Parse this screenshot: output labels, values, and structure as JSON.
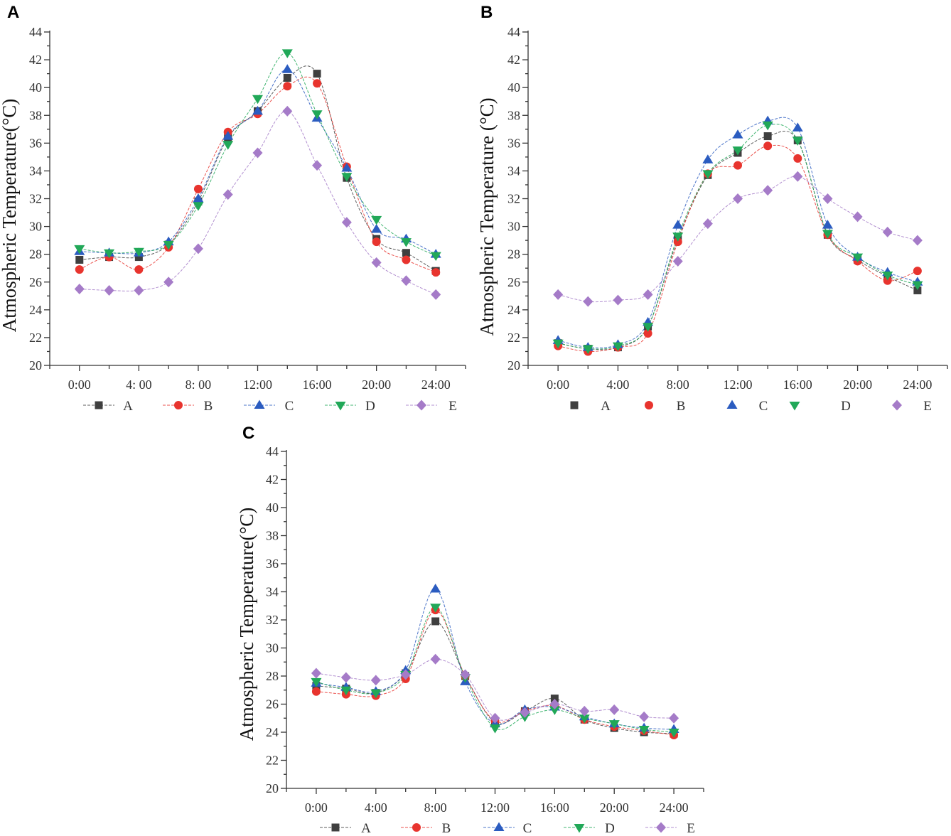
{
  "chart_data": [
    {
      "panel_label": "A",
      "type": "line",
      "title": "",
      "xlabel": "",
      "ylabel": "Atmospheric Temperature(°C)",
      "x": [
        0,
        2,
        4,
        6,
        8,
        10,
        12,
        14,
        16,
        18,
        20,
        22,
        24
      ],
      "x_ticks": [
        0,
        4,
        8,
        12,
        16,
        20,
        24
      ],
      "x_tick_labels": [
        "0:00",
        "4: 00",
        "8: 00",
        "12:00",
        "16:00",
        "20:00",
        "24:00"
      ],
      "xlim": [
        -2,
        26
      ],
      "ylim": [
        20,
        44
      ],
      "y_ticks": [
        20,
        22,
        24,
        26,
        28,
        30,
        32,
        34,
        36,
        38,
        40,
        42,
        44
      ],
      "y_tick_labels": [
        "20",
        "22",
        "24",
        "26",
        "28",
        "30",
        "32",
        "34",
        "36",
        "38",
        "40",
        "42",
        "44"
      ],
      "grid": false,
      "legend_position": "bottom",
      "series": [
        {
          "name": "A",
          "marker": "square",
          "color": "#3f3f3f",
          "values": [
            27.6,
            27.8,
            27.8,
            28.7,
            31.8,
            36.4,
            38.3,
            40.7,
            41.0,
            33.5,
            29.1,
            28.1,
            26.8
          ]
        },
        {
          "name": "B",
          "marker": "circle",
          "color": "#e8342e",
          "values": [
            26.9,
            27.8,
            26.9,
            28.5,
            32.7,
            36.8,
            38.1,
            40.1,
            40.3,
            34.3,
            28.9,
            27.6,
            26.7
          ]
        },
        {
          "name": "C",
          "marker": "triangle-up",
          "color": "#2b5cc0",
          "values": [
            28.2,
            28.1,
            28.1,
            28.9,
            32.0,
            36.5,
            38.3,
            41.3,
            37.8,
            34.2,
            29.8,
            29.1,
            28.0
          ]
        },
        {
          "name": "D",
          "marker": "triangle-down",
          "color": "#21a858",
          "values": [
            28.4,
            28.1,
            28.2,
            28.7,
            31.5,
            35.9,
            39.2,
            42.5,
            38.1,
            33.6,
            30.5,
            28.9,
            27.9
          ]
        },
        {
          "name": "E",
          "marker": "diamond",
          "color": "#a57bc8",
          "values": [
            25.5,
            25.4,
            25.4,
            26.0,
            28.4,
            32.3,
            35.3,
            38.3,
            34.4,
            30.3,
            27.4,
            26.1,
            25.1
          ]
        }
      ]
    },
    {
      "panel_label": "B",
      "type": "line",
      "title": "",
      "xlabel": "",
      "ylabel": "Atmospheric Temperature (°C)",
      "x": [
        0,
        2,
        4,
        6,
        8,
        10,
        12,
        14,
        16,
        18,
        20,
        22,
        24
      ],
      "x_ticks": [
        0,
        4,
        8,
        12,
        16,
        20,
        24
      ],
      "x_tick_labels": [
        "0:00",
        "4:00",
        "8:00",
        "12:00",
        "16:00",
        "20:00",
        "24:00"
      ],
      "xlim": [
        -2,
        26
      ],
      "ylim": [
        20,
        44
      ],
      "y_ticks": [
        20,
        22,
        24,
        26,
        28,
        30,
        32,
        34,
        36,
        38,
        40,
        42,
        44
      ],
      "y_tick_labels": [
        "20",
        "22",
        "24",
        "26",
        "28",
        "30",
        "32",
        "34",
        "36",
        "38",
        "40",
        "42",
        "44"
      ],
      "grid": false,
      "legend_position": "bottom",
      "series": [
        {
          "name": "A",
          "marker": "square",
          "color": "#3f3f3f",
          "values": [
            21.6,
            21.2,
            21.3,
            22.8,
            29.1,
            33.7,
            35.3,
            36.5,
            36.2,
            29.4,
            27.6,
            26.4,
            25.4
          ]
        },
        {
          "name": "B",
          "marker": "circle",
          "color": "#e8342e",
          "values": [
            21.4,
            21.0,
            21.3,
            22.3,
            28.9,
            33.8,
            34.4,
            35.8,
            34.9,
            29.4,
            27.5,
            26.1,
            26.8
          ]
        },
        {
          "name": "C",
          "marker": "triangle-up",
          "color": "#2b5cc0",
          "values": [
            21.8,
            21.3,
            21.5,
            23.1,
            30.1,
            34.8,
            36.6,
            37.6,
            37.1,
            30.1,
            27.8,
            26.7,
            26.0
          ]
        },
        {
          "name": "D",
          "marker": "triangle-down",
          "color": "#21a858",
          "values": [
            21.6,
            21.2,
            21.4,
            22.8,
            29.3,
            33.8,
            35.5,
            37.3,
            36.2,
            29.5,
            27.8,
            26.5,
            25.8
          ]
        },
        {
          "name": "E",
          "marker": "diamond",
          "color": "#a57bc8",
          "values": [
            25.1,
            24.6,
            24.7,
            25.1,
            27.5,
            30.2,
            32.0,
            32.6,
            33.6,
            32.0,
            30.7,
            29.6,
            29.0
          ]
        }
      ]
    },
    {
      "panel_label": "C",
      "type": "line",
      "title": "",
      "xlabel": "",
      "ylabel": "Atmospheric Temperature(°C)",
      "x": [
        0,
        2,
        4,
        6,
        8,
        10,
        12,
        14,
        16,
        18,
        20,
        22,
        24
      ],
      "x_ticks": [
        0,
        4,
        8,
        12,
        16,
        20,
        24
      ],
      "x_tick_labels": [
        "0:00",
        "4:00",
        "8:00",
        "12:00",
        "16:00",
        "20:00",
        "24:00"
      ],
      "xlim": [
        -2,
        26
      ],
      "ylim": [
        20,
        44
      ],
      "y_ticks": [
        20,
        22,
        24,
        26,
        28,
        30,
        32,
        34,
        36,
        38,
        40,
        42,
        44
      ],
      "y_tick_labels": [
        "20",
        "22",
        "24",
        "26",
        "28",
        "30",
        "32",
        "34",
        "36",
        "38",
        "40",
        "42",
        "44"
      ],
      "grid": false,
      "legend_position": "bottom",
      "series": [
        {
          "name": "A",
          "marker": "square",
          "color": "#3f3f3f",
          "values": [
            27.3,
            27.1,
            26.8,
            28.2,
            31.9,
            28.0,
            24.7,
            25.5,
            26.4,
            24.9,
            24.3,
            24.0,
            23.9
          ]
        },
        {
          "name": "B",
          "marker": "circle",
          "color": "#e8342e",
          "values": [
            26.9,
            26.7,
            26.6,
            27.8,
            32.7,
            28.0,
            24.8,
            25.5,
            25.9,
            24.9,
            24.4,
            24.1,
            23.8
          ]
        },
        {
          "name": "C",
          "marker": "triangle-up",
          "color": "#2b5cc0",
          "values": [
            27.5,
            27.2,
            26.9,
            28.4,
            34.2,
            27.6,
            24.6,
            25.6,
            25.8,
            25.1,
            24.6,
            24.3,
            24.2
          ]
        },
        {
          "name": "D",
          "marker": "triangle-down",
          "color": "#21a858",
          "values": [
            27.6,
            27.0,
            26.8,
            28.1,
            32.9,
            27.9,
            24.3,
            25.1,
            25.6,
            25.0,
            24.6,
            24.2,
            24.0
          ]
        },
        {
          "name": "E",
          "marker": "diamond",
          "color": "#a57bc8",
          "values": [
            28.2,
            27.9,
            27.7,
            28.1,
            29.2,
            28.1,
            25.0,
            25.4,
            26.0,
            25.5,
            25.6,
            25.1,
            25.0
          ]
        }
      ]
    }
  ]
}
